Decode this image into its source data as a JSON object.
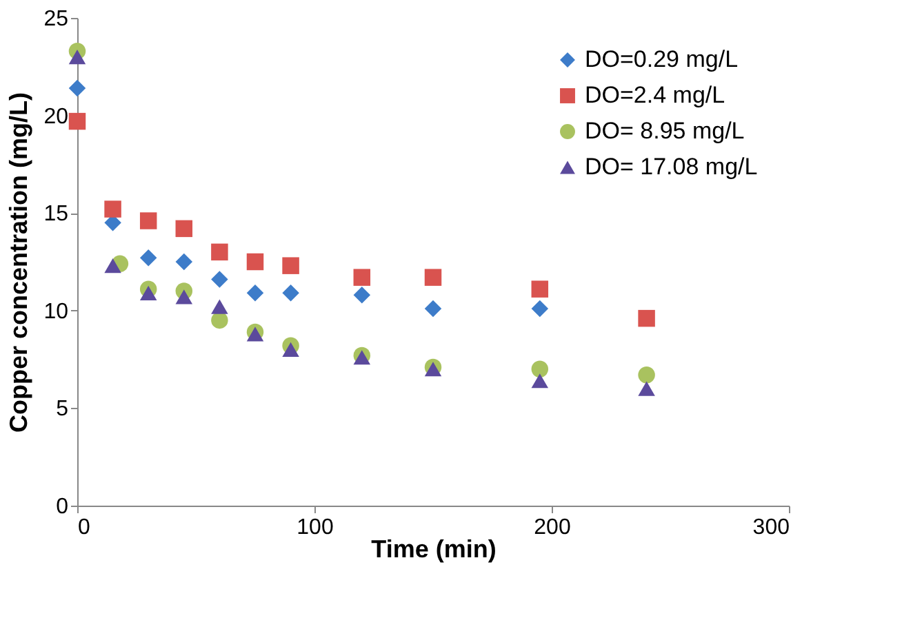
{
  "chart_data": {
    "type": "scatter",
    "xlabel": "Time (min)",
    "ylabel": "Copper concentration  (mg/L)",
    "xlim": [
      0,
      300
    ],
    "xticks": [
      0,
      100,
      200,
      300
    ],
    "ylim": [
      0,
      25
    ],
    "yticks": [
      0,
      5,
      10,
      15,
      20,
      25
    ],
    "grid": false,
    "legend": "top right",
    "series": [
      {
        "name": "DO=0.29 mg/L",
        "color": "#3d7cc9",
        "marker": "diamond",
        "x": [
          0,
          15,
          30,
          45,
          60,
          75,
          90,
          120,
          150,
          195
        ],
        "values": [
          21.4,
          14.5,
          12.7,
          12.5,
          11.6,
          10.9,
          10.9,
          10.8,
          10.1,
          10.1
        ]
      },
      {
        "name": "DO=2.4 mg/L",
        "color": "#d9534f",
        "marker": "square",
        "x": [
          0,
          15,
          30,
          45,
          60,
          75,
          90,
          120,
          150,
          195,
          240
        ],
        "values": [
          19.7,
          15.2,
          14.6,
          14.2,
          13.0,
          12.5,
          12.3,
          11.7,
          11.7,
          11.1,
          9.6
        ]
      },
      {
        "name": "DO= 8.95 mg/L",
        "color": "#a9c25f",
        "marker": "circle",
        "x": [
          0,
          18,
          30,
          45,
          60,
          75,
          90,
          120,
          150,
          195,
          240
        ],
        "values": [
          23.3,
          12.4,
          11.1,
          11.0,
          9.5,
          8.9,
          8.2,
          7.7,
          7.1,
          7.0,
          6.7
        ]
      },
      {
        "name": "DO= 17.08 mg/L",
        "color": "#5b4a9c",
        "marker": "triangle",
        "x": [
          0,
          15,
          30,
          45,
          60,
          75,
          90,
          120,
          150,
          195,
          240
        ],
        "values": [
          23.0,
          12.3,
          10.9,
          10.7,
          10.2,
          8.8,
          8.0,
          7.6,
          7.0,
          6.4,
          6.0
        ]
      }
    ]
  }
}
